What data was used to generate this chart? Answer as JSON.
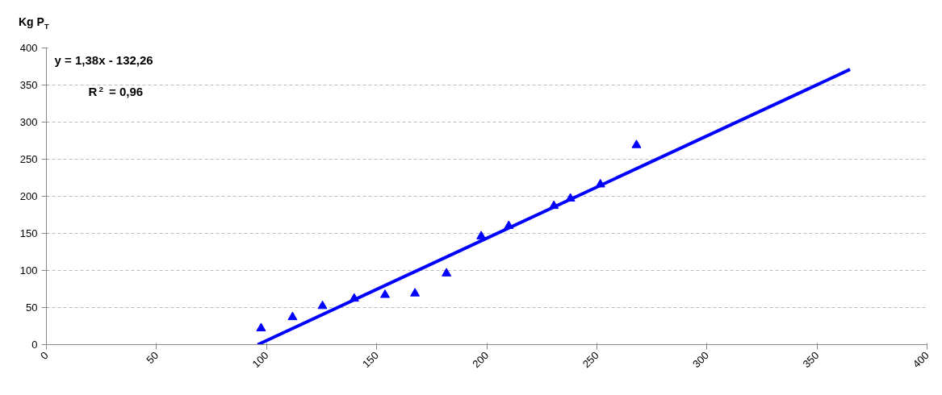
{
  "chart_data": {
    "type": "scatter",
    "ylabel": "Kg P$_{T}$",
    "annotations": [
      "y = 1,38x - 132,26",
      "R$^{2}$ = 0,96"
    ],
    "xlim": [
      0,
      400
    ],
    "xticks": [
      0,
      50,
      100,
      150,
      200,
      250,
      300,
      350,
      400
    ],
    "ylim": [
      0,
      400
    ],
    "yticks": [
      0,
      50,
      100,
      150,
      200,
      250,
      300,
      350,
      400
    ],
    "grid": "y",
    "series": [
      {
        "color": "#0000ff",
        "marker": "triangle",
        "x": [
          97.5,
          111.8,
          125.4,
          139.8,
          153.8,
          167.4,
          181.7,
          197.5,
          210,
          230.5,
          238,
          251.6,
          268
        ],
        "values": [
          22,
          37,
          52,
          62,
          67,
          69,
          96,
          146,
          160,
          187,
          197,
          216,
          269
        ]
      },
      {
        "type": "line",
        "color": "#0000ff",
        "x": [
          96,
          365
        ],
        "values": [
          0,
          371
        ]
      }
    ]
  }
}
